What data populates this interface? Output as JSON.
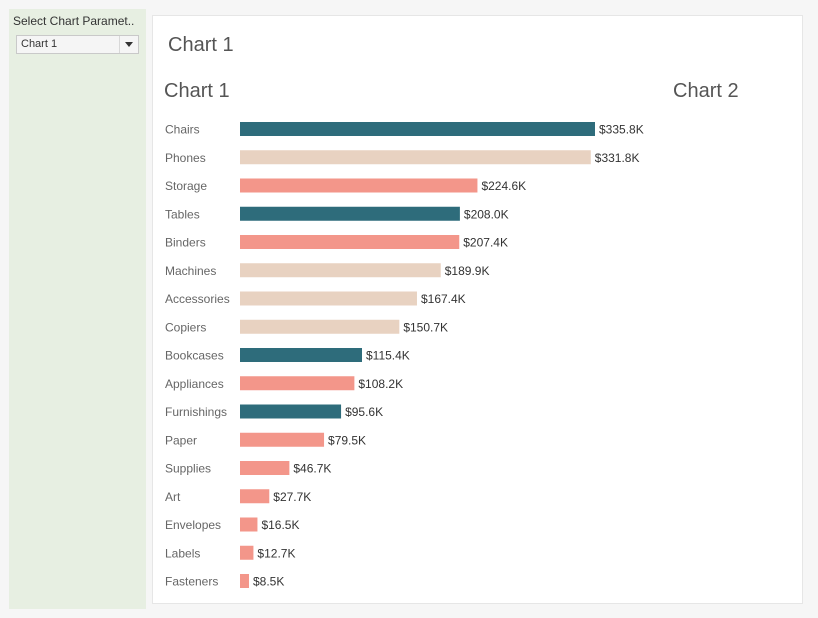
{
  "sidebar": {
    "parameter_title": "Select Chart Paramet..",
    "select_value": "Chart 1",
    "select_icon": "chevron-down-icon"
  },
  "dashboard": {
    "title": "Chart 1",
    "left_title": "Chart 1",
    "right_title": "Chart 2"
  },
  "colors": {
    "teal": "#2e6c7b",
    "beige": "#e8d2c1",
    "salmon": "#f3968a"
  },
  "chart_data": {
    "type": "bar",
    "orientation": "horizontal",
    "categories": [
      "Chairs",
      "Phones",
      "Storage",
      "Tables",
      "Binders",
      "Machines",
      "Accessories",
      "Copiers",
      "Bookcases",
      "Appliances",
      "Furnishings",
      "Paper",
      "Supplies",
      "Art",
      "Envelopes",
      "Labels",
      "Fasteners"
    ],
    "values": [
      335800,
      331800,
      224600,
      208000,
      207400,
      189900,
      167400,
      150700,
      115400,
      108200,
      95600,
      79500,
      46700,
      27700,
      16500,
      12700,
      8500
    ],
    "value_labels": [
      "$335.8K",
      "$331.8K",
      "$224.6K",
      "$208.0K",
      "$207.4K",
      "$189.9K",
      "$167.4K",
      "$150.7K",
      "$115.4K",
      "$108.2K",
      "$95.6K",
      "$79.5K",
      "$46.7K",
      "$27.7K",
      "$16.5K",
      "$12.7K",
      "$8.5K"
    ],
    "bar_colors": [
      "#2e6c7b",
      "#e8d2c1",
      "#f3968a",
      "#2e6c7b",
      "#f3968a",
      "#e8d2c1",
      "#e8d2c1",
      "#e8d2c1",
      "#2e6c7b",
      "#f3968a",
      "#2e6c7b",
      "#f3968a",
      "#f3968a",
      "#f3968a",
      "#f3968a",
      "#f3968a",
      "#f3968a"
    ],
    "grid": false,
    "axis_visible": false
  }
}
